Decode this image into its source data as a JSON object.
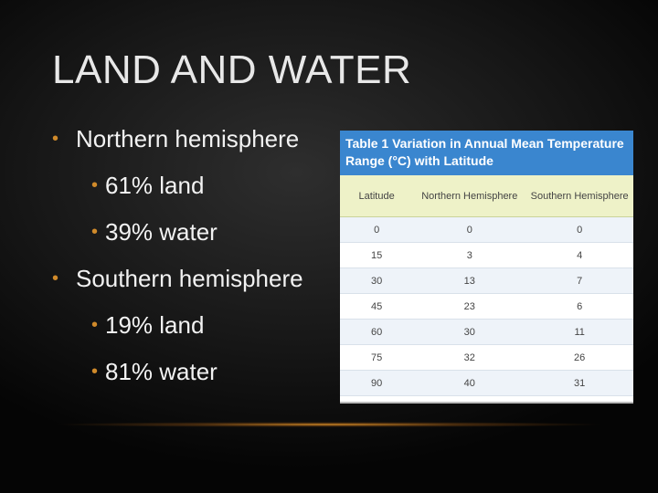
{
  "slide": {
    "title": "LAND AND WATER",
    "bullets": [
      {
        "text": "Northern hemisphere",
        "items": [
          "61% land",
          "39% water"
        ]
      },
      {
        "text": "Southern hemisphere",
        "items": [
          "19% land",
          "81% water"
        ]
      }
    ],
    "table": {
      "caption": "Table 1 Variation in Annual Mean Temperature Range (°C) with Latitude",
      "columns": [
        "Latitude",
        "Northern Hemisphere",
        "Southern Hemisphere"
      ],
      "rows": [
        [
          0,
          0,
          0
        ],
        [
          15,
          3,
          4
        ],
        [
          30,
          13,
          7
        ],
        [
          45,
          23,
          6
        ],
        [
          60,
          30,
          11
        ],
        [
          75,
          32,
          26
        ],
        [
          90,
          40,
          31
        ]
      ]
    }
  }
}
